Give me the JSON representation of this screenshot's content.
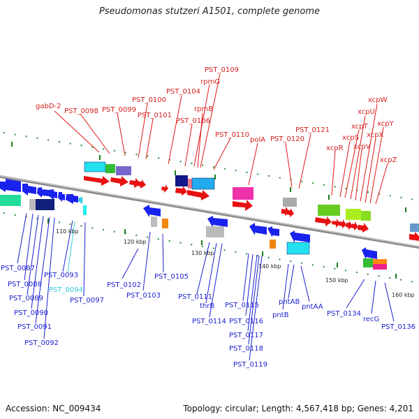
{
  "header": {
    "title": "Pseudomonas stutzeri A1501, complete genome"
  },
  "footer": {
    "accession": "Accession: NC_009434",
    "summary": "Topology: circular; Length: 4,567,418 bp; Genes: 4,201"
  },
  "colors": {
    "backbone": "#8a8a8a",
    "forward_label": "#d81e1e",
    "reverse_label": "#1a1fd0",
    "highlight_label": "#33ccdd",
    "tick": "#1a7a1a"
  },
  "scale_ticks": [
    "110 kbp",
    "120 kbp",
    "130 kbp",
    "140 kbp",
    "150 kbp",
    "160 kbp"
  ],
  "forward_gene_labels": [
    "gabD-2",
    "PST_0098",
    "PST_0099",
    "PST_0100",
    "PST_0101",
    "PST_0104",
    "rpmG",
    "PST_0109",
    "rpmB",
    "PST_0106",
    "PST_0110",
    "polA",
    "PST_0120",
    "PST_0121",
    "xcpR",
    "xcpS",
    "xcpT",
    "xcpU",
    "xcpV",
    "xcpW",
    "xcpX",
    "xcpY",
    "xcpZ"
  ],
  "reverse_gene_labels": [
    "PST_0087",
    "PST_0088",
    "PST_0089",
    "PST_0090",
    "PST_0091",
    "PST_0092",
    "PST_0093",
    "PST_0094",
    "PST_0097",
    "PST_0102",
    "PST_0103",
    "PST_0105",
    "PST_0111",
    "thrB",
    "PST_0114",
    "PST_0115",
    "PST_0116",
    "PST_0117",
    "PST_0118",
    "PST_0119",
    "pntB",
    "pntAB",
    "pntAA",
    "PST_0134",
    "recG",
    "PST_0136"
  ]
}
